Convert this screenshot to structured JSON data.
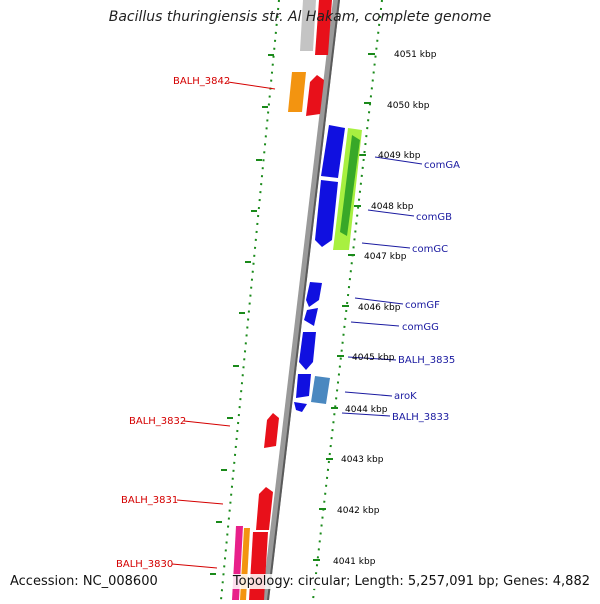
{
  "title": "Bacillus thuringiensis str. Al Hakam, complete genome",
  "footer": {
    "accession": "Accession: NC_008600",
    "topology": "Topology: circular; Length: 5,257,091 bp; Genes: 4,882"
  },
  "kbp_labels": [
    "4051 kbp",
    "4050 kbp",
    "4049 kbp",
    "4048 kbp",
    "4047 kbp",
    "4046 kbp",
    "4045 kbp",
    "4044 kbp",
    "4043 kbp",
    "4042 kbp",
    "4041 kbp"
  ],
  "gene_labels_left": [
    "BALH_3842",
    "BALH_3832",
    "BALH_3831",
    "BALH_3830"
  ],
  "gene_labels_right": [
    "comGA",
    "comGB",
    "comGC",
    "comGF",
    "comGG",
    "BALH_3835",
    "aroK",
    "BALH_3833"
  ],
  "colors": {
    "red": "#e8101a",
    "blue": "#1010e0",
    "orange": "#f39410",
    "light_green": "#a8f040",
    "green": "#38a828",
    "steel_blue": "#4a88c0",
    "gray": "#c4c4c4",
    "magenta": "#e8208a",
    "tick_green": "#1a8a1a",
    "label_red": "#d40000",
    "label_blue": "#1a1aa0"
  }
}
